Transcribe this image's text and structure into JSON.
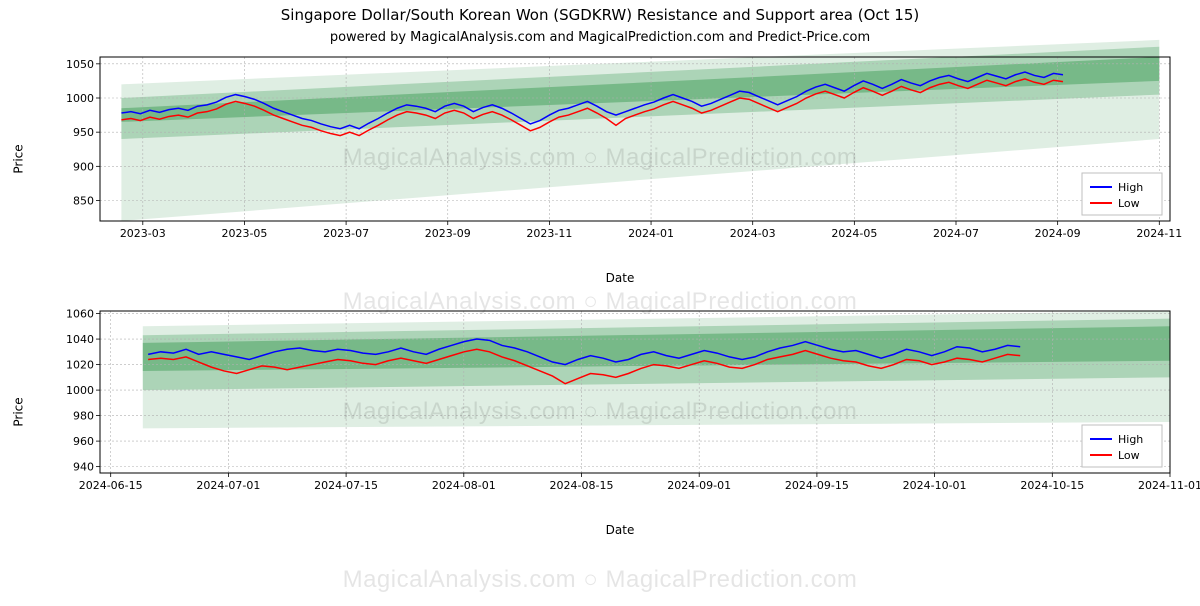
{
  "title": "Singapore Dollar/South Korean Won (SGDKRW) Resistance and Support area (Oct 15)",
  "subtitle": "powered by MagicalAnalysis.com and MagicalPrediction.com and Predict-Price.com",
  "watermark": "MagicalAnalysis.com   ○   MagicalPrediction.com",
  "legend": {
    "high": "High",
    "low": "Low"
  },
  "colors": {
    "high_line": "#0000ff",
    "low_line": "#ff0000",
    "band1": "rgba(76,162,99,0.55)",
    "band2": "rgba(76,162,99,0.35)",
    "band3": "rgba(76,162,99,0.18)",
    "grid": "#b0b0b0",
    "border": "#000000",
    "legend_border": "#bfbfbf",
    "bg": "#ffffff"
  },
  "chart1": {
    "type": "line",
    "xlabel": "Date",
    "ylabel": "Price",
    "ylim": [
      820,
      1060
    ],
    "yticks": [
      850,
      900,
      950,
      1000,
      1050
    ],
    "xtick_labels": [
      "2023-03",
      "2023-05",
      "2023-07",
      "2023-09",
      "2023-11",
      "2024-01",
      "2024-03",
      "2024-05",
      "2024-07",
      "2024-09",
      "2024-11"
    ],
    "xtick_pos": [
      0.04,
      0.135,
      0.23,
      0.325,
      0.42,
      0.515,
      0.61,
      0.705,
      0.8,
      0.895,
      0.99
    ],
    "band_x": [
      0.02,
      0.99
    ],
    "band_y_core": [
      [
        965,
        985
      ],
      [
        1025,
        1060
      ]
    ],
    "band_y_mid": [
      [
        940,
        1000
      ],
      [
        1005,
        1075
      ]
    ],
    "band_y_out": [
      [
        820,
        1020
      ],
      [
        940,
        1085
      ]
    ],
    "high": [
      978,
      980,
      977,
      982,
      979,
      983,
      985,
      982,
      988,
      990,
      994,
      1001,
      1005,
      1002,
      998,
      992,
      985,
      980,
      975,
      970,
      967,
      962,
      958,
      955,
      960,
      955,
      963,
      970,
      978,
      985,
      990,
      988,
      985,
      980,
      988,
      992,
      988,
      980,
      986,
      990,
      985,
      978,
      970,
      962,
      967,
      975,
      982,
      985,
      990,
      995,
      988,
      980,
      975,
      980,
      985,
      990,
      994,
      1000,
      1005,
      1000,
      995,
      988,
      992,
      998,
      1004,
      1010,
      1008,
      1002,
      996,
      990,
      996,
      1002,
      1010,
      1016,
      1020,
      1015,
      1010,
      1018,
      1025,
      1020,
      1014,
      1020,
      1027,
      1022,
      1018,
      1025,
      1030,
      1033,
      1028,
      1024,
      1030,
      1036,
      1032,
      1028,
      1034,
      1038,
      1033,
      1030,
      1036,
      1034
    ],
    "low": [
      968,
      970,
      967,
      972,
      969,
      973,
      975,
      972,
      978,
      980,
      984,
      991,
      995,
      992,
      988,
      982,
      975,
      970,
      965,
      960,
      957,
      952,
      948,
      945,
      950,
      945,
      953,
      960,
      968,
      975,
      980,
      978,
      975,
      970,
      978,
      982,
      978,
      970,
      976,
      980,
      975,
      968,
      960,
      952,
      957,
      965,
      972,
      975,
      980,
      985,
      978,
      970,
      960,
      970,
      975,
      980,
      984,
      990,
      995,
      990,
      985,
      978,
      982,
      988,
      994,
      1000,
      998,
      992,
      986,
      980,
      986,
      992,
      1000,
      1006,
      1010,
      1005,
      1000,
      1008,
      1015,
      1010,
      1004,
      1010,
      1017,
      1012,
      1008,
      1015,
      1020,
      1023,
      1018,
      1014,
      1020,
      1026,
      1022,
      1018,
      1024,
      1028,
      1023,
      1020,
      1026,
      1024
    ],
    "data_x": [
      0.02,
      0.9
    ]
  },
  "chart2": {
    "type": "line",
    "xlabel": "Date",
    "ylabel": "Price",
    "ylim": [
      935,
      1062
    ],
    "yticks": [
      940,
      960,
      980,
      1000,
      1020,
      1040,
      1060
    ],
    "xtick_labels": [
      "2024-06-15",
      "2024-07-01",
      "2024-07-15",
      "2024-08-01",
      "2024-08-15",
      "2024-09-01",
      "2024-09-15",
      "2024-10-01",
      "2024-10-15",
      "2024-11-01"
    ],
    "xtick_pos": [
      0.01,
      0.12,
      0.23,
      0.34,
      0.45,
      0.56,
      0.67,
      0.78,
      0.89,
      1.0
    ],
    "band_x": [
      0.04,
      1.0
    ],
    "band_y_core": [
      [
        1015,
        1037
      ],
      [
        1023,
        1050
      ]
    ],
    "band_y_mid": [
      [
        1000,
        1043
      ],
      [
        1010,
        1056
      ]
    ],
    "band_y_out": [
      [
        970,
        1050
      ],
      [
        975,
        1062
      ]
    ],
    "high": [
      1028,
      1030,
      1029,
      1032,
      1028,
      1030,
      1028,
      1026,
      1024,
      1027,
      1030,
      1032,
      1033,
      1031,
      1030,
      1032,
      1031,
      1029,
      1028,
      1030,
      1033,
      1030,
      1028,
      1032,
      1035,
      1038,
      1040,
      1039,
      1035,
      1033,
      1030,
      1026,
      1022,
      1020,
      1024,
      1027,
      1025,
      1022,
      1024,
      1028,
      1030,
      1027,
      1025,
      1028,
      1031,
      1029,
      1026,
      1024,
      1026,
      1030,
      1033,
      1035,
      1038,
      1035,
      1032,
      1030,
      1031,
      1028,
      1025,
      1028,
      1032,
      1030,
      1027,
      1030,
      1034,
      1033,
      1030,
      1032,
      1035,
      1034
    ],
    "low": [
      1024,
      1025,
      1024,
      1026,
      1022,
      1018,
      1015,
      1013,
      1016,
      1019,
      1018,
      1016,
      1018,
      1020,
      1022,
      1024,
      1023,
      1021,
      1020,
      1023,
      1025,
      1023,
      1021,
      1024,
      1027,
      1030,
      1032,
      1030,
      1026,
      1023,
      1019,
      1015,
      1011,
      1005,
      1009,
      1013,
      1012,
      1010,
      1013,
      1017,
      1020,
      1019,
      1017,
      1020,
      1023,
      1021,
      1018,
      1017,
      1020,
      1024,
      1026,
      1028,
      1031,
      1028,
      1025,
      1023,
      1022,
      1019,
      1017,
      1020,
      1024,
      1023,
      1020,
      1022,
      1025,
      1024,
      1022,
      1025,
      1028,
      1027
    ],
    "data_x": [
      0.045,
      0.86
    ]
  }
}
